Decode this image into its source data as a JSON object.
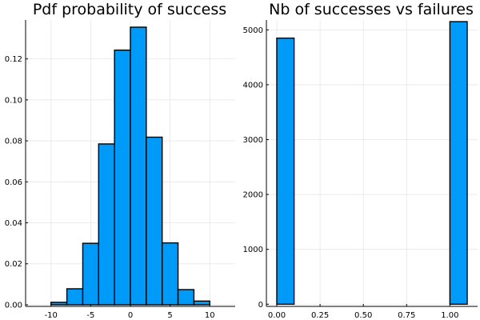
{
  "colors": {
    "bar_fill": "#009af9",
    "bar_stroke": "#000000",
    "grid": "#e6e6e6"
  },
  "chart_data": [
    {
      "type": "bar",
      "title": "Pdf probability of success",
      "xlabel": "",
      "ylabel": "",
      "bin_edges": [
        -12,
        -10,
        -8,
        -6,
        -4,
        -2,
        0,
        2,
        4,
        6,
        8,
        10,
        12
      ],
      "values": [
        0.0,
        0.0012,
        0.0078,
        0.03,
        0.0785,
        0.1243,
        0.1355,
        0.0818,
        0.0302,
        0.0074,
        0.0018,
        0.0
      ],
      "xlim": [
        -13.2,
        13.2
      ],
      "ylim": [
        -0.0008,
        0.139
      ],
      "xticks": [
        -10,
        -5,
        0,
        5,
        10
      ],
      "xtick_labels": [
        "-10",
        "-5",
        "0",
        "5",
        "10"
      ],
      "yticks": [
        0,
        0.02,
        0.04,
        0.06,
        0.08,
        0.1,
        0.12
      ],
      "ytick_labels": [
        "0.00",
        "0.02",
        "0.04",
        "0.06",
        "0.08",
        "0.10",
        "0.12"
      ],
      "grid": true,
      "legend": false
    },
    {
      "type": "bar",
      "title": "Nb of successes vs failures",
      "xlabel": "",
      "ylabel": "",
      "bin_edges": [
        0.0,
        0.1,
        0.2,
        0.3,
        0.4,
        0.5,
        0.6,
        0.7,
        0.8,
        0.9,
        1.0,
        1.1
      ],
      "values": [
        4850,
        0,
        0,
        0,
        0,
        0,
        0,
        0,
        0,
        0,
        5150
      ],
      "xlim": [
        -0.06,
        1.16
      ],
      "ylim": [
        -40,
        5180
      ],
      "xticks": [
        0.0,
        0.25,
        0.5,
        0.75,
        1.0
      ],
      "xtick_labels": [
        "0.00",
        "0.25",
        "0.50",
        "0.75",
        "1.00"
      ],
      "yticks": [
        0,
        1000,
        2000,
        3000,
        4000,
        5000
      ],
      "ytick_labels": [
        "0",
        "1000",
        "2000",
        "3000",
        "4000",
        "5000"
      ],
      "grid": true,
      "legend": false
    }
  ]
}
